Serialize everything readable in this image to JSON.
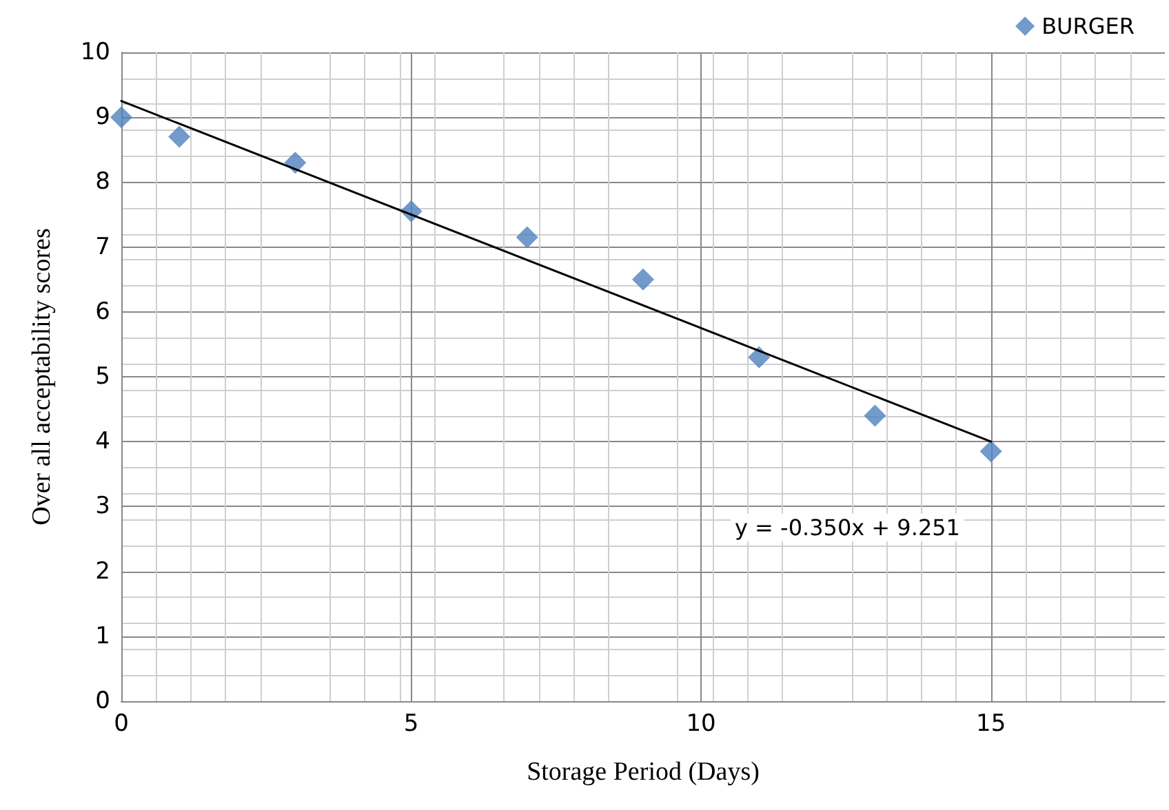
{
  "chart_data": {
    "type": "scatter",
    "xlabel": "Storage Period (Days)",
    "ylabel": "Over all acceptability scores",
    "x": [
      0,
      1,
      3,
      5,
      7,
      9,
      11,
      13,
      15
    ],
    "series": [
      {
        "name": "BURGER",
        "color": "#4f81bd",
        "marker": "diamond",
        "values": [
          9.0,
          8.7,
          8.3,
          7.55,
          7.15,
          6.5,
          5.3,
          4.4,
          3.85
        ]
      },
      {
        "type": "line",
        "color": "#000000",
        "marker": "none",
        "line_style": "solid",
        "x": [
          0,
          15
        ],
        "values": [
          9.25,
          4.0
        ]
      }
    ],
    "annotations": [
      "y = -0.350x + 9.251"
    ],
    "xlim": [
      0,
      18
    ],
    "xticks": [
      0,
      5,
      10,
      15
    ],
    "ylim": [
      0,
      10
    ],
    "yticks": [
      0,
      1,
      2,
      3,
      4,
      5,
      6,
      7,
      8,
      9,
      10
    ],
    "grid": true,
    "legend": "top right"
  }
}
